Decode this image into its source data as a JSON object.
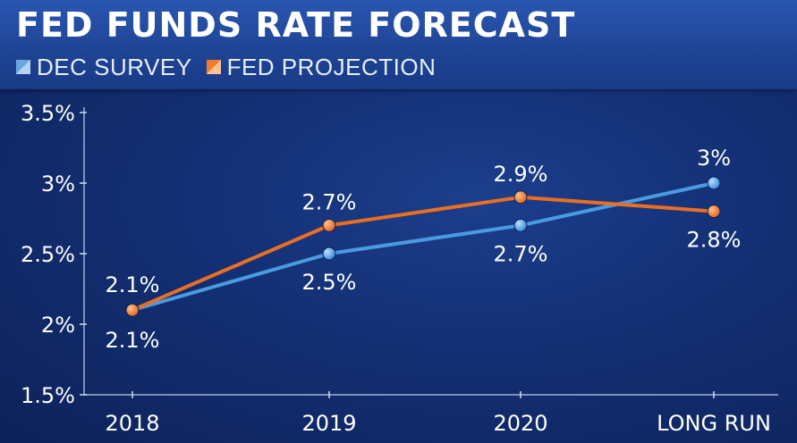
{
  "header": {
    "title": "FED FUNDS RATE FORECAST",
    "legend": [
      {
        "label": "DEC SURVEY",
        "color": "#4a9be0"
      },
      {
        "label": "FED PROJECTION",
        "color": "#ea6f22"
      }
    ]
  },
  "chart_data": {
    "type": "line",
    "title": "FED FUNDS RATE FORECAST",
    "categories": [
      "2018",
      "2019",
      "2020",
      "LONG RUN"
    ],
    "series": [
      {
        "name": "DEC SURVEY",
        "values": [
          2.1,
          2.5,
          2.7,
          3.0
        ],
        "labels": [
          "2.1%",
          "2.5%",
          "2.7%",
          "3%"
        ],
        "color": "#4a9be0"
      },
      {
        "name": "FED PROJECTION",
        "values": [
          2.1,
          2.7,
          2.9,
          2.8
        ],
        "labels": [
          "2.1%",
          "2.7%",
          "2.9%",
          "2.8%"
        ],
        "color": "#ea6f22"
      }
    ],
    "yticks": [
      1.5,
      2,
      2.5,
      3,
      3.5
    ],
    "ytick_labels": [
      "1.5%",
      "2%",
      "2.5%",
      "3%",
      "3.5%"
    ],
    "ylim": [
      1.5,
      3.5
    ],
    "xlabel": "",
    "ylabel": "",
    "grid": false,
    "legend_position": "top-left"
  }
}
